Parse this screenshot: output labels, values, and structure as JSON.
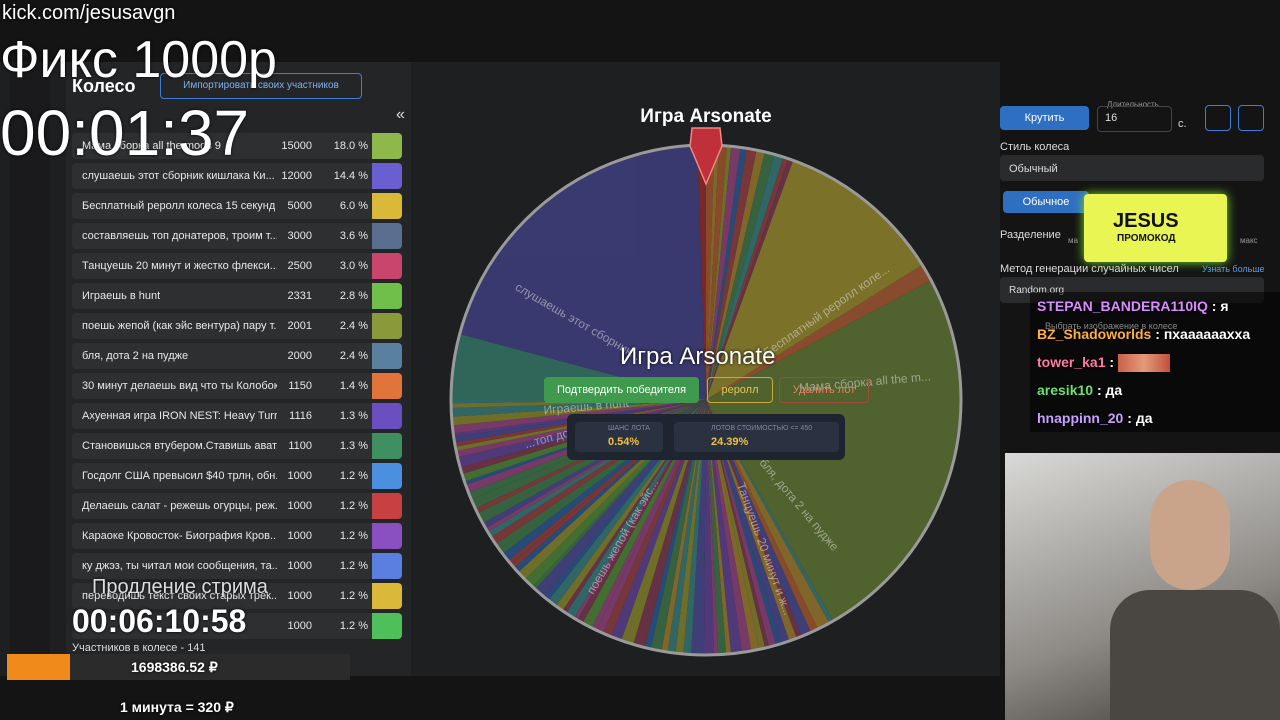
{
  "overlay": {
    "url": "kick.com/jesusavgn",
    "title": "Фикс 1000р",
    "timer": "00:01:37",
    "extend_label": "Продление стрима",
    "extend_timer": "00:06:10:58",
    "total": "1698386.52 ₽",
    "rate": "1 минута = 320 ₽"
  },
  "sidebar": {
    "title": "Колесо",
    "import_button": "Импортировать своих участников",
    "collapse": "«",
    "participants": "Участников в колесе - 141",
    "lots": [
      {
        "name": "Мама сборка all the mods 9",
        "amount": 15000,
        "percent": "18.0 %"
      },
      {
        "name": "слушаешь этот сборник кишлака Ки...",
        "amount": 12000,
        "percent": "14.4 %"
      },
      {
        "name": "Бесплатный реролл колеса 15 секунд",
        "amount": 5000,
        "percent": "6.0 %"
      },
      {
        "name": "составляешь топ донатеров, троим т...",
        "amount": 3000,
        "percent": "3.6 %"
      },
      {
        "name": "Танцуешь 20 минут и жестко флекси...",
        "amount": 2500,
        "percent": "3.0 %"
      },
      {
        "name": "Играешь в hunt",
        "amount": 2331,
        "percent": "2.8 %"
      },
      {
        "name": "поешь жепой (как эйс вентура) пару т...",
        "amount": 2001,
        "percent": "2.4 %"
      },
      {
        "name": "бля, дота 2 на пудже",
        "amount": 2000,
        "percent": "2.4 %"
      },
      {
        "name": "30 минут делаешь вид что ты Колобок...",
        "amount": 1150,
        "percent": "1.4 %"
      },
      {
        "name": "Ахуенная игра IRON NEST: Heavy Turre...",
        "amount": 1116,
        "percent": "1.3 %"
      },
      {
        "name": "Становишься втубером.Ставишь ават...",
        "amount": 1100,
        "percent": "1.3 %"
      },
      {
        "name": "Госдолг США превысил $40 трлн, обн...",
        "amount": 1000,
        "percent": "1.2 %"
      },
      {
        "name": "Делаешь салат - режешь огурцы, реж...",
        "amount": 1000,
        "percent": "1.2 %"
      },
      {
        "name": "Караоке Кровосток- Биография Кров...",
        "amount": 1000,
        "percent": "1.2 %"
      },
      {
        "name": "ку джэз, ты читал мои сообщения, та...",
        "amount": 1000,
        "percent": "1.2 %"
      },
      {
        "name": "переводишь текст своих старых трек...",
        "amount": 1000,
        "percent": "1.2 %"
      },
      {
        "amount": 1000,
        "percent": "1.2 %"
      }
    ]
  },
  "wheel": {
    "title": "Игра Arsonate",
    "segment_labels": [
      "слушаешь этот сборник...",
      "Бесплатный реролл коле...",
      "Мама сборка all the m...",
      "Играешь в hunt",
      "...топ донат...",
      "Танцуешь 20 минут и ж...",
      "бля, дота 2 на пудже",
      "поешь жепой (как эйс..."
    ],
    "winner": {
      "name": "Игра Arsonate",
      "confirm": "Подтвердить победителя",
      "reroll": "реролл",
      "delete": "Удалить лот",
      "chance_label": "ШАНС ЛОТА",
      "chance": "0.54%",
      "cheaper_label": "ЛОТОВ СТОИМОСТЬЮ <= 450",
      "cheaper": "24.39%"
    }
  },
  "settings": {
    "spin": "Крутить",
    "duration_label": "Длительность",
    "duration": "16",
    "unit": "с.",
    "style_label": "Стиль колеса",
    "style": "Обычный",
    "mode": "Обычное",
    "split_label": "Разделение",
    "min": "ма",
    "max": "макс",
    "rng_label": "Метод генерации случайных чисел",
    "learn_more": "Узнать больше",
    "rng": "Random.org",
    "image": "Выбрать изображение в колесе"
  },
  "promo": {
    "brand": "JESUS",
    "label": "ПРОМОКОД"
  },
  "chat": [
    {
      "user": "STEPAN_BANDERA110IQ",
      "message": "я"
    },
    {
      "user": "BZ_Shadoworlds",
      "message": "пхаааааахха"
    },
    {
      "user": "tower_ka1"
    },
    {
      "user": "aresik10",
      "message": "да"
    },
    {
      "user": "hnappinn_20",
      "message": "да"
    }
  ]
}
